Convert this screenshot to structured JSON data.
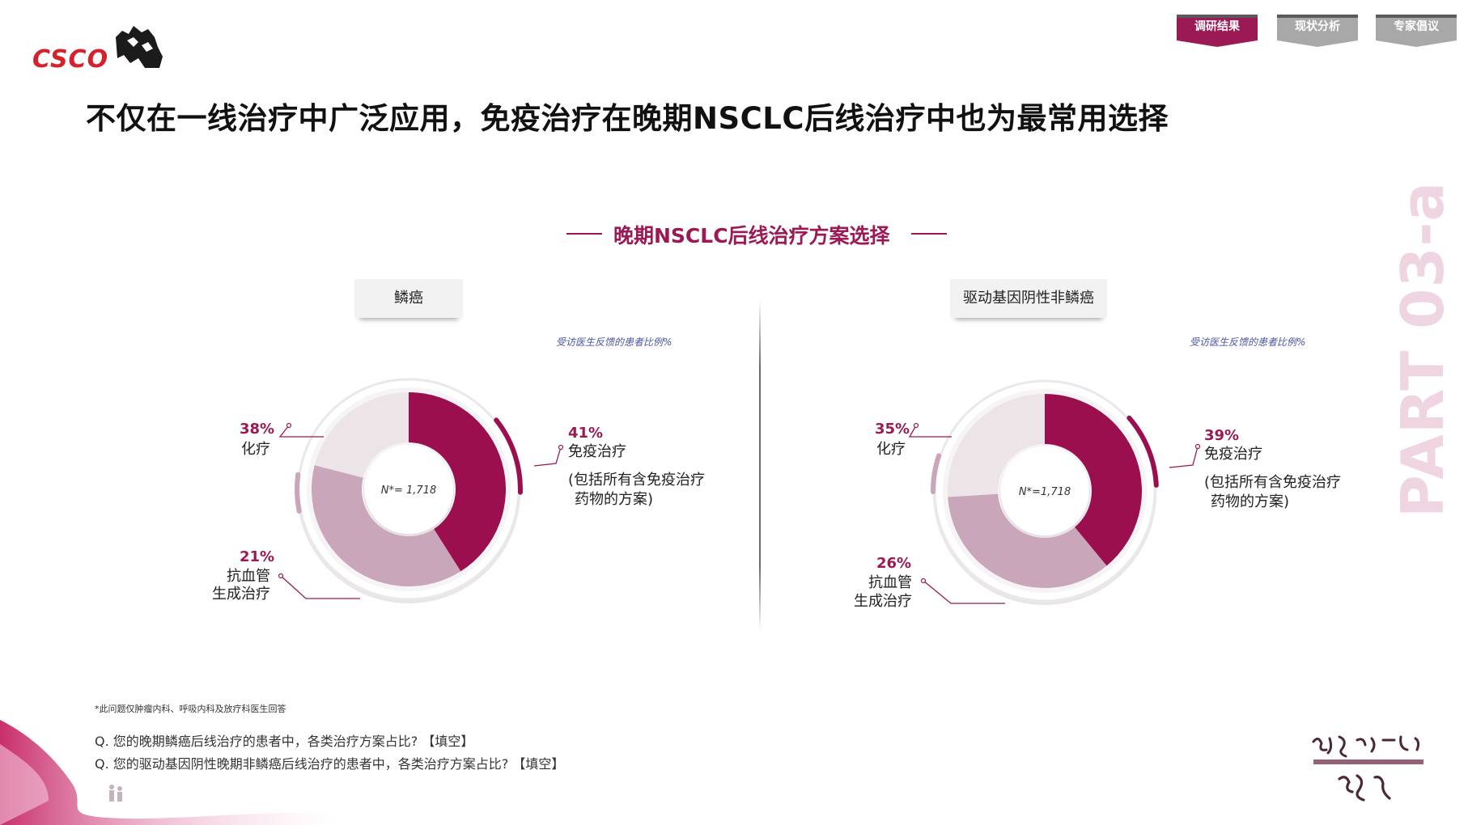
{
  "brand": {
    "logo_text": "CSCO"
  },
  "nav": {
    "tabs": [
      {
        "label": "调研结果",
        "active": true
      },
      {
        "label": "现状分析",
        "active": false
      },
      {
        "label": "专家倡议",
        "active": false
      }
    ]
  },
  "page_title": "不仅在一线治疗中广泛应用，免疫治疗在晚期NSCLC后线治疗中也为最常用选择",
  "chart_section_title": "晚期NSCLC后线治疗方案选择",
  "part_label": "PART 03-a",
  "colors": {
    "immuno": "#9b0f4f",
    "chemo": "#c9a6b9",
    "antiangio": "#ede4e8",
    "accent": "#9b1a55",
    "tab_active": "#9b1a55",
    "tab_inactive": "#a8a8a8"
  },
  "charts": [
    {
      "segment": "鳞癌",
      "subtitle": "受访医生反馈的患者比例%",
      "center_label": "N*= 1,718",
      "immuno": {
        "pct": "41%",
        "label": "免疫治疗",
        "note": [
          "(包括所有含免疫治疗",
          "药物的方案)"
        ]
      },
      "chemo": {
        "pct": "38%",
        "label": "化疗"
      },
      "antiangio": {
        "pct": "21%",
        "label": [
          "抗血管",
          "生成治疗"
        ]
      }
    },
    {
      "segment": "驱动基因阴性非鳞癌",
      "subtitle": "受访医生反馈的患者比例%",
      "center_label": "N*=1,718",
      "immuno": {
        "pct": "39%",
        "label": "免疫治疗",
        "note": [
          "(包括所有含免疫治疗",
          "药物的方案)"
        ]
      },
      "chemo": {
        "pct": "35%",
        "label": "化疗"
      },
      "antiangio": {
        "pct": "26%",
        "label": [
          "抗血管",
          "生成治疗"
        ]
      }
    }
  ],
  "chart_data": [
    {
      "type": "pie",
      "title": "鳞癌",
      "categories": [
        "免疫治疗",
        "化疗",
        "抗血管生成治疗"
      ],
      "values": [
        41,
        38,
        21
      ],
      "unit": "%",
      "n": "1,718"
    },
    {
      "type": "pie",
      "title": "驱动基因阴性非鳞癌",
      "categories": [
        "免疫治疗",
        "化疗",
        "抗血管生成治疗"
      ],
      "values": [
        39,
        35,
        26
      ],
      "unit": "%",
      "n": "1,718"
    }
  ],
  "footnote": "*此问题仅肿瘤内科、呼吸内科及放疗科医生回答",
  "questions": [
    "Q. 您的晚期鳞癌后线治疗的患者中，各类治疗方案占比? 【填空】",
    "Q. 您的驱动基因阴性晚期非鳞癌后线治疗的患者中，各类治疗方案占比? 【填空】"
  ],
  "campaign_logo": {
    "line1": "拯救生命的另一半",
    "line2": "肺癌免疫治疗持续用药规范化",
    "line3": "白皮书"
  }
}
